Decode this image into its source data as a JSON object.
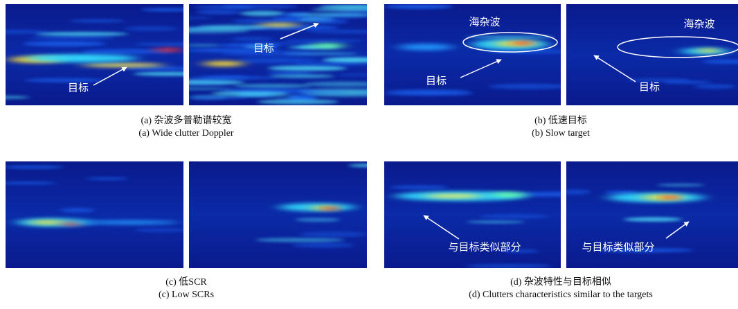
{
  "panels": [
    {
      "caption_zh": "(a) 杂波多普勒谱较宽",
      "caption_en": "(a) Wide clutter Doppler",
      "labels": [
        "目标",
        "目标"
      ]
    },
    {
      "caption_zh": "(b) 低速目标",
      "caption_en": "(b) Slow target",
      "labels": [
        "海杂波",
        "目标",
        "海杂波",
        "目标"
      ]
    },
    {
      "caption_zh": "(c) 低SCR",
      "caption_en": "(c) Low SCRs"
    },
    {
      "caption_zh": "(d) 杂波特性与目标相似",
      "caption_en": "(d) Clutters characteristics similar to the targets",
      "labels": [
        "与目标类似部分",
        "与目标类似部分"
      ]
    }
  ]
}
